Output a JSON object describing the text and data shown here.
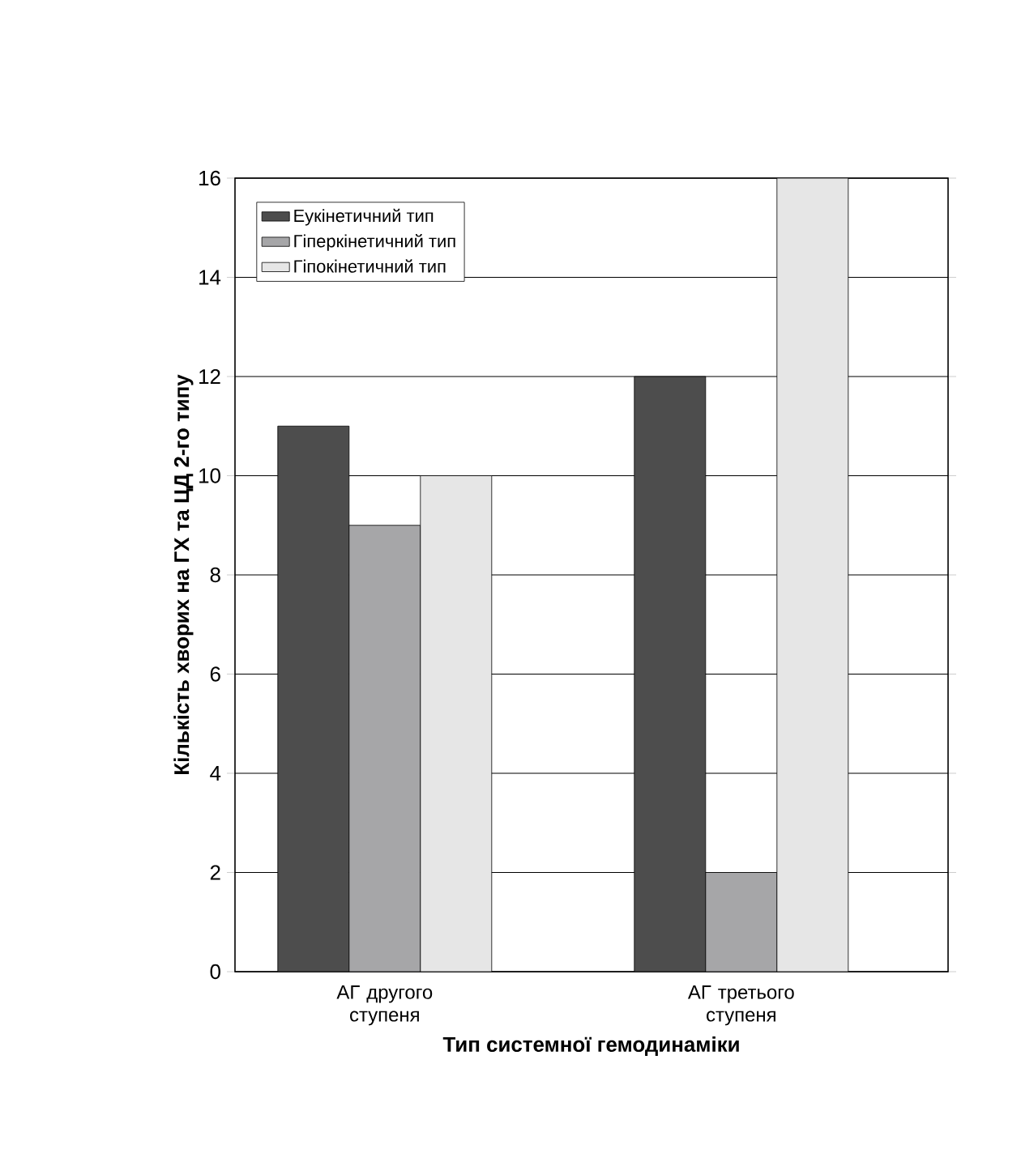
{
  "chart_data": {
    "type": "bar",
    "xlabel": "Тип системної гемодинаміки",
    "ylabel": "Кількість хворих на ГХ та ЦД 2-го типу",
    "categories": [
      "АГ другого ступеня",
      "АГ третього ступеня"
    ],
    "series": [
      {
        "name": "Еукінетичний тип",
        "color": "#4d4d4d",
        "values": [
          11,
          12
        ]
      },
      {
        "name": "Гіперкінетичний тип",
        "color": "#a6a6a8",
        "values": [
          9,
          2
        ]
      },
      {
        "name": "Гіпокінетичний тип",
        "color": "#e6e6e6",
        "values": [
          10,
          16
        ]
      }
    ],
    "ylim": [
      0,
      16
    ],
    "yticks": [
      0,
      2,
      4,
      6,
      8,
      10,
      12,
      14,
      16
    ],
    "grid": "y",
    "legend": "top left"
  }
}
